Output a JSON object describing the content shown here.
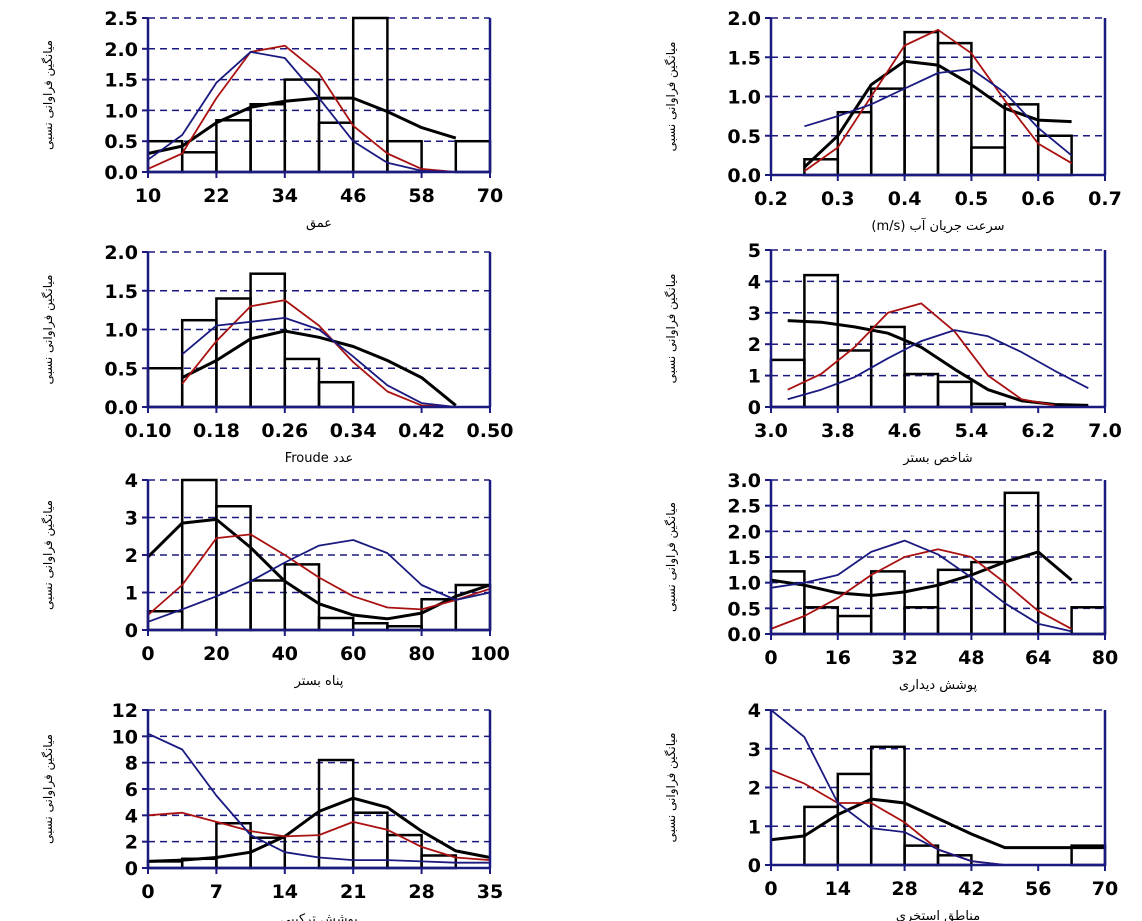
{
  "chart_data": [
    {
      "type": "bar",
      "xlabel": "عمق",
      "ylabel": "میانگین فراوانی نسبی",
      "xlim": [
        10,
        70
      ],
      "ylim": [
        0,
        2.5
      ],
      "xticks": [
        "10",
        "22",
        "34",
        "46",
        "58",
        "70"
      ],
      "yticks": [
        "0.0",
        "0.5",
        "1.0",
        "1.5",
        "2.0",
        "2.5"
      ],
      "grid": "dashed-horizontal",
      "bar_edges": [
        10,
        16,
        22,
        28,
        34,
        40,
        46,
        52,
        58,
        64,
        70
      ],
      "values": [
        0.5,
        0.32,
        0.84,
        1.1,
        1.5,
        0.8,
        2.5,
        0.5,
        0.0,
        0.5
      ],
      "series": [
        {
          "color": "#000000",
          "x": [
            10,
            16,
            22,
            28,
            34,
            40,
            46,
            52,
            58,
            64
          ],
          "values": [
            0.3,
            0.42,
            0.8,
            1.05,
            1.15,
            1.2,
            1.2,
            0.98,
            0.72,
            0.55
          ]
        },
        {
          "color": "#aa1111",
          "x": [
            10,
            16,
            22,
            28,
            34,
            40,
            46,
            52,
            58,
            64
          ],
          "values": [
            0.05,
            0.3,
            1.2,
            1.95,
            2.05,
            1.6,
            0.75,
            0.3,
            0.05,
            0.0
          ]
        },
        {
          "color": "#1a1a80",
          "x": [
            10,
            16,
            22,
            28,
            34,
            40,
            46,
            52,
            58,
            64
          ],
          "values": [
            0.2,
            0.6,
            1.45,
            1.95,
            1.85,
            1.2,
            0.5,
            0.15,
            0.02,
            0.0
          ]
        }
      ]
    },
    {
      "type": "bar",
      "xlabel": "سرعت جریان آب (m/s)",
      "ylabel": "میانگین فراوانی نسبی",
      "xlim": [
        0.2,
        0.7
      ],
      "ylim": [
        0,
        2.0
      ],
      "xticks": [
        "0.2",
        "0.3",
        "0.4",
        "0.5",
        "0.6",
        "0.7"
      ],
      "yticks": [
        "0.0",
        "0.5",
        "1.0",
        "1.5",
        "2.0"
      ],
      "grid": "dashed-horizontal",
      "bar_edges": [
        0.25,
        0.3,
        0.35,
        0.4,
        0.45,
        0.5,
        0.55,
        0.6,
        0.65
      ],
      "values": [
        0.2,
        0.8,
        1.1,
        1.82,
        1.68,
        0.35,
        0.9,
        0.5
      ],
      "series": [
        {
          "color": "#000000",
          "x": [
            0.25,
            0.3,
            0.35,
            0.4,
            0.45,
            0.5,
            0.55,
            0.6,
            0.65
          ],
          "values": [
            0.1,
            0.5,
            1.15,
            1.45,
            1.4,
            1.15,
            0.85,
            0.7,
            0.68
          ]
        },
        {
          "color": "#aa1111",
          "x": [
            0.25,
            0.3,
            0.35,
            0.4,
            0.45,
            0.5,
            0.55,
            0.6,
            0.65
          ],
          "values": [
            0.05,
            0.35,
            1.0,
            1.65,
            1.85,
            1.55,
            0.95,
            0.4,
            0.15
          ]
        },
        {
          "color": "#1a1a80",
          "x": [
            0.25,
            0.3,
            0.35,
            0.4,
            0.45,
            0.5,
            0.55,
            0.6,
            0.65
          ],
          "values": [
            0.62,
            0.75,
            0.9,
            1.1,
            1.3,
            1.35,
            1.05,
            0.6,
            0.25
          ]
        }
      ]
    },
    {
      "type": "bar",
      "xlabel": "عدد Froude",
      "ylabel": "میانگین فراوانی نسبی",
      "xlim": [
        0.1,
        0.5
      ],
      "ylim": [
        0,
        2.0
      ],
      "xticks": [
        "0.10",
        "0.18",
        "0.26",
        "0.34",
        "0.42",
        "0.50"
      ],
      "yticks": [
        "0.0",
        "0.5",
        "1.0",
        "1.5",
        "2.0"
      ],
      "grid": "dashed-horizontal",
      "bar_edges": [
        0.1,
        0.14,
        0.18,
        0.22,
        0.26,
        0.3,
        0.34
      ],
      "values": [
        0.5,
        1.12,
        1.4,
        1.72,
        0.62,
        0.32
      ],
      "series": [
        {
          "color": "#000000",
          "x": [
            0.14,
            0.18,
            0.22,
            0.26,
            0.3,
            0.34,
            0.38,
            0.42,
            0.46
          ],
          "values": [
            0.38,
            0.6,
            0.88,
            0.98,
            0.9,
            0.78,
            0.6,
            0.38,
            0.02
          ]
        },
        {
          "color": "#aa1111",
          "x": [
            0.14,
            0.18,
            0.22,
            0.26,
            0.3,
            0.34,
            0.38,
            0.42,
            0.46
          ],
          "values": [
            0.3,
            0.85,
            1.3,
            1.38,
            1.05,
            0.58,
            0.2,
            0.02,
            0.0
          ]
        },
        {
          "color": "#1a1a80",
          "x": [
            0.14,
            0.18,
            0.22,
            0.26,
            0.3,
            0.34,
            0.38,
            0.42,
            0.46
          ],
          "values": [
            0.68,
            1.05,
            1.1,
            1.15,
            1.0,
            0.65,
            0.28,
            0.05,
            0.0
          ]
        }
      ]
    },
    {
      "type": "bar",
      "xlabel": "شاخص بستر",
      "ylabel": "میانگین فراوانی نسبی",
      "xlim": [
        3.0,
        7.0
      ],
      "ylim": [
        0,
        5
      ],
      "xticks": [
        "3.0",
        "3.8",
        "4.6",
        "5.4",
        "6.2",
        "7.0"
      ],
      "yticks": [
        "0",
        "1",
        "2",
        "3",
        "4",
        "5"
      ],
      "grid": "dashed-horizontal",
      "bar_edges": [
        3.0,
        3.4,
        3.8,
        4.2,
        4.6,
        5.0,
        5.4,
        5.8
      ],
      "values": [
        1.5,
        4.2,
        1.8,
        2.55,
        1.05,
        0.8,
        0.1
      ],
      "series": [
        {
          "color": "#000000",
          "x": [
            3.2,
            3.6,
            4.0,
            4.4,
            4.8,
            5.2,
            5.6,
            6.0,
            6.4,
            6.8
          ],
          "values": [
            2.75,
            2.7,
            2.55,
            2.35,
            1.9,
            1.2,
            0.55,
            0.2,
            0.08,
            0.05
          ]
        },
        {
          "color": "#aa1111",
          "x": [
            3.2,
            3.6,
            4.0,
            4.4,
            4.8,
            5.2,
            5.6,
            6.0,
            6.4
          ],
          "values": [
            0.55,
            1.05,
            1.9,
            3.0,
            3.3,
            2.4,
            1.0,
            0.25,
            0.05
          ]
        },
        {
          "color": "#1a1a80",
          "x": [
            3.2,
            3.6,
            4.0,
            4.4,
            4.8,
            5.2,
            5.6,
            6.0,
            6.4,
            6.8
          ],
          "values": [
            0.25,
            0.55,
            0.95,
            1.55,
            2.1,
            2.45,
            2.25,
            1.75,
            1.15,
            0.6
          ]
        }
      ]
    },
    {
      "type": "bar",
      "xlabel": "پناه بستر",
      "ylabel": "میانگین فراوانی نسبی",
      "xlim": [
        0,
        100
      ],
      "ylim": [
        0,
        4
      ],
      "xticks": [
        "0",
        "20",
        "40",
        "60",
        "80",
        "100"
      ],
      "yticks": [
        "0",
        "1",
        "2",
        "3",
        "4"
      ],
      "grid": "dashed-horizontal",
      "bar_edges": [
        0,
        10,
        20,
        30,
        40,
        50,
        60,
        70,
        80,
        90,
        100
      ],
      "values": [
        0.5,
        4.0,
        3.3,
        1.32,
        1.75,
        0.32,
        0.18,
        0.1,
        0.82,
        1.2
      ],
      "series": [
        {
          "color": "#000000",
          "x": [
            0,
            10,
            20,
            30,
            40,
            50,
            60,
            70,
            80,
            90,
            100
          ],
          "values": [
            1.95,
            2.85,
            2.95,
            2.2,
            1.3,
            0.7,
            0.4,
            0.3,
            0.45,
            0.9,
            1.2
          ]
        },
        {
          "color": "#aa1111",
          "x": [
            0,
            10,
            20,
            30,
            40,
            50,
            60,
            70,
            80,
            90,
            100
          ],
          "values": [
            0.4,
            1.2,
            2.45,
            2.55,
            2.0,
            1.4,
            0.9,
            0.6,
            0.55,
            0.8,
            1.1
          ]
        },
        {
          "color": "#1a1a80",
          "x": [
            0,
            10,
            20,
            30,
            40,
            50,
            60,
            70,
            80,
            90,
            100
          ],
          "values": [
            0.22,
            0.55,
            0.9,
            1.3,
            1.8,
            2.25,
            2.4,
            2.05,
            1.2,
            0.8,
            1.0
          ]
        }
      ]
    },
    {
      "type": "bar",
      "xlabel": "پوشش دیداری",
      "ylabel": "میانگین فراوانی نسبی",
      "xlim": [
        0,
        80
      ],
      "ylim": [
        0,
        3.0
      ],
      "xticks": [
        "0",
        "16",
        "32",
        "48",
        "64",
        "80"
      ],
      "yticks": [
        "0.0",
        "0.5",
        "1.0",
        "1.5",
        "2.0",
        "2.5",
        "3.0"
      ],
      "grid": "dashed-horizontal",
      "bar_edges": [
        0,
        8,
        16,
        24,
        32,
        40,
        48,
        56,
        64,
        72,
        80
      ],
      "values": [
        1.22,
        0.52,
        0.35,
        1.22,
        0.52,
        1.25,
        1.4,
        2.75,
        0.0,
        0.52
      ],
      "series": [
        {
          "color": "#000000",
          "x": [
            0,
            8,
            16,
            24,
            32,
            40,
            48,
            56,
            64,
            72
          ],
          "values": [
            1.05,
            0.95,
            0.8,
            0.75,
            0.82,
            0.95,
            1.15,
            1.4,
            1.6,
            1.05
          ]
        },
        {
          "color": "#aa1111",
          "x": [
            0,
            8,
            16,
            24,
            32,
            40,
            48,
            56,
            64,
            72
          ],
          "values": [
            0.1,
            0.35,
            0.7,
            1.15,
            1.5,
            1.65,
            1.5,
            1.0,
            0.45,
            0.1
          ]
        },
        {
          "color": "#1a1a80",
          "x": [
            0,
            8,
            16,
            24,
            32,
            40,
            48,
            56,
            64,
            72
          ],
          "values": [
            0.9,
            1.0,
            1.15,
            1.6,
            1.82,
            1.55,
            1.1,
            0.6,
            0.2,
            0.05
          ]
        }
      ]
    },
    {
      "type": "bar",
      "xlabel": "پوشش ترکیبی",
      "ylabel": "میانگین فراوانی نسبی",
      "xlim": [
        0,
        35
      ],
      "ylim": [
        0,
        12
      ],
      "xticks": [
        "0",
        "7",
        "14",
        "21",
        "28",
        "35"
      ],
      "yticks": [
        "0",
        "2",
        "4",
        "6",
        "8",
        "10",
        "12"
      ],
      "grid": "dashed-horizontal",
      "bar_edges": [
        0,
        3.5,
        7,
        10.5,
        14,
        17.5,
        21,
        24.5,
        28,
        31.5,
        35
      ],
      "values": [
        0.5,
        0.7,
        3.4,
        2.3,
        0.0,
        8.2,
        4.2,
        2.5,
        0.95,
        0.0
      ],
      "series": [
        {
          "color": "#000000",
          "x": [
            0,
            3.5,
            7,
            10.5,
            14,
            17.5,
            21,
            24.5,
            28,
            31.5,
            35
          ],
          "values": [
            0.5,
            0.6,
            0.8,
            1.2,
            2.4,
            4.3,
            5.3,
            4.6,
            2.8,
            1.3,
            0.8
          ]
        },
        {
          "color": "#aa1111",
          "x": [
            0,
            3.5,
            7,
            10.5,
            14,
            17.5,
            21,
            24.5,
            28,
            31.5,
            35
          ],
          "values": [
            4.0,
            4.2,
            3.5,
            2.8,
            2.4,
            2.5,
            3.5,
            2.9,
            1.6,
            0.8,
            0.6
          ]
        },
        {
          "color": "#1a1a80",
          "x": [
            0,
            3.5,
            7,
            10.5,
            14,
            17.5,
            21,
            24.5,
            28,
            31.5,
            35
          ],
          "values": [
            10.2,
            9.0,
            5.5,
            2.5,
            1.2,
            0.8,
            0.6,
            0.6,
            0.5,
            0.4,
            0.4
          ]
        }
      ]
    },
    {
      "type": "bar",
      "xlabel": "مناطق استخری",
      "ylabel": "میانگین فراوانی نسبی",
      "xlim": [
        0,
        70
      ],
      "ylim": [
        0,
        4
      ],
      "xticks": [
        "0",
        "14",
        "28",
        "42",
        "56",
        "70"
      ],
      "yticks": [
        "0",
        "1",
        "2",
        "3",
        "4"
      ],
      "grid": "dashed-horizontal",
      "bar_edges": [
        0,
        7,
        14,
        21,
        28,
        35,
        42,
        49,
        56,
        63,
        70
      ],
      "values": [
        0.0,
        1.5,
        2.35,
        3.05,
        0.5,
        0.25,
        0.0,
        0.0,
        0.0,
        0.5
      ],
      "series": [
        {
          "color": "#000000",
          "x": [
            0,
            7,
            14,
            21,
            28,
            35,
            42,
            49,
            56,
            63,
            70
          ],
          "values": [
            0.65,
            0.75,
            1.3,
            1.7,
            1.6,
            1.2,
            0.8,
            0.45,
            0.45,
            0.45,
            0.45
          ]
        },
        {
          "color": "#aa1111",
          "x": [
            0,
            7,
            14,
            21,
            28,
            35,
            42,
            49,
            56,
            63,
            70
          ],
          "values": [
            2.45,
            2.1,
            1.6,
            1.6,
            1.1,
            0.4,
            0.1,
            0.0,
            0.0,
            0.0,
            0.0
          ]
        },
        {
          "color": "#1a1a80",
          "x": [
            0,
            7,
            14,
            21,
            28,
            35,
            42,
            49,
            56,
            63,
            70
          ],
          "values": [
            4.0,
            3.3,
            1.6,
            0.95,
            0.85,
            0.4,
            0.1,
            0.0,
            0.0,
            0.0,
            0.0
          ]
        }
      ]
    }
  ]
}
